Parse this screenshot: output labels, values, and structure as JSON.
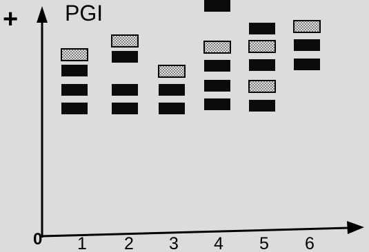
{
  "figure": {
    "plus_sign": "+",
    "title": "PGI",
    "origin": "0",
    "colors": {
      "background": "#dcdcdc",
      "ink": "#000000",
      "dense_band": "#0b0b0b",
      "light_band": "#d7d7d7"
    }
  },
  "lanes": [
    {
      "label": "1",
      "bands": [
        "light",
        "dense",
        "dense",
        "dense"
      ]
    },
    {
      "label": "2",
      "bands": [
        "light",
        "dense",
        "dense",
        "dense"
      ]
    },
    {
      "label": "3",
      "bands": [
        "light",
        "dense",
        "dense"
      ]
    },
    {
      "label": "4",
      "bands": [
        "light",
        "dense",
        "dense",
        "dense",
        "dense"
      ]
    },
    {
      "label": "5",
      "bands": [
        "dense",
        "light",
        "dense",
        "light",
        "dense"
      ]
    },
    {
      "label": "6",
      "bands": [
        "light",
        "dense",
        "dense"
      ]
    }
  ]
}
